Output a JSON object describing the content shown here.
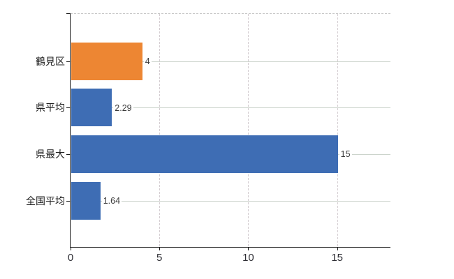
{
  "chart_data": {
    "type": "bar",
    "orientation": "horizontal",
    "title": "",
    "xlabel": "",
    "ylabel": "",
    "categories": [
      "鶴見区",
      "県平均",
      "県最大",
      "全国平均"
    ],
    "values": [
      4,
      2.29,
      15,
      1.64
    ],
    "value_labels": [
      "4",
      "2.29",
      "15",
      "1.64"
    ],
    "bar_colors": [
      "#ED8633",
      "#3E6DB4",
      "#3E6DB4",
      "#3E6DB4"
    ],
    "xlim": [
      0,
      18
    ],
    "x_ticks": [
      0,
      5,
      10,
      15
    ],
    "x_tick_labels": [
      "0",
      "5",
      "10",
      "15"
    ],
    "grid": "horizontal solid lines at category centers; vertical dashed lines at x ticks; dashed top border",
    "legend": false,
    "background": "#ffffff"
  },
  "colors": {
    "axis": "#1a1a1a",
    "bar_orange": "#ED8633",
    "bar_blue": "#3E6DB4",
    "grid_horizontal": "#ccd4cc",
    "grid_vertical": "#d4cdd1",
    "top_border": "#c6c6c6",
    "category_label": "#1f1f1f",
    "value_label": "#3a3a3a",
    "x_tick_label": "#2e2e34",
    "background": "#ffffff"
  }
}
